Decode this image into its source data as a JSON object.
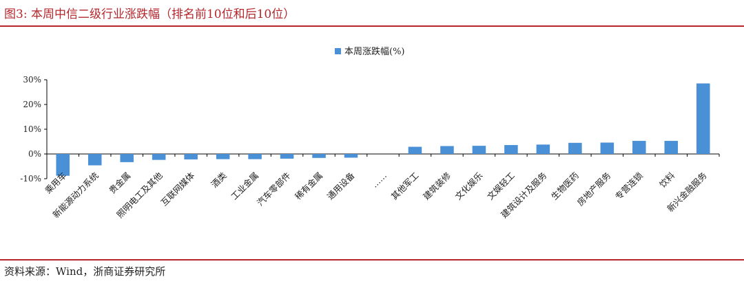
{
  "header": {
    "title": "图3:  本周中信二级行业涨跌幅（排名前10位和后10位）"
  },
  "footer": {
    "source": "资料来源：Wind，浙商证券研究所"
  },
  "colors": {
    "accent": "#b4262c",
    "bar": "#4a90d6",
    "axis": "#000000"
  },
  "chart_data": {
    "type": "bar",
    "legend": {
      "label": "本周涨跌幅(%)",
      "position": "top-center"
    },
    "ylim": [
      -10,
      30
    ],
    "yticks": [
      30,
      20,
      10,
      0,
      -10
    ],
    "ytick_labels": [
      "30%",
      "20%",
      "10%",
      "0%",
      "-10%"
    ],
    "grid": false,
    "categories": [
      "乘用车",
      "新能源动力系统",
      "贵金属",
      "照明电工及其他",
      "互联网媒体",
      "酒类",
      "工业金属",
      "汽车零部件",
      "稀有金属",
      "通用设备",
      "……",
      "其他军工",
      "建筑装修",
      "文化娱乐",
      "文娱轻工",
      "建筑设计及服务",
      "生物医药",
      "房地产服务",
      "专营连锁",
      "饮料",
      "新兴金融服务"
    ],
    "values": [
      -8.8,
      -4.6,
      -3.3,
      -2.4,
      -2.2,
      -2.1,
      -2.1,
      -1.9,
      -1.6,
      -1.5,
      null,
      2.9,
      3.2,
      3.3,
      3.6,
      3.8,
      4.5,
      4.6,
      5.3,
      5.3,
      28.5
    ]
  }
}
